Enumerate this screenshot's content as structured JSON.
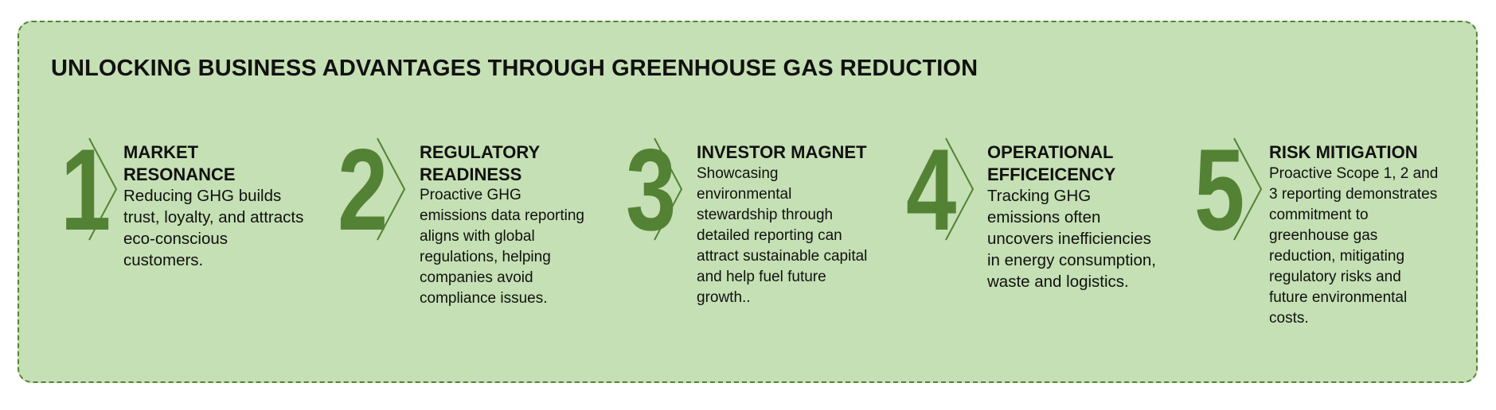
{
  "title": "UNLOCKING BUSINESS ADVANTAGES THROUGH GREENHOUSE GAS REDUCTION",
  "colors": {
    "accent": "#548235",
    "background": "#c5e0b4",
    "text": "#111111"
  },
  "items": [
    {
      "number": "1",
      "heading": "MARKET RESONANCE",
      "body": "Reducing GHG builds trust, loyalty, and attracts eco-conscious customers."
    },
    {
      "number": "2",
      "heading": "REGULATORY READINESS",
      "body": "Proactive GHG emissions data reporting aligns with global regulations, helping companies avoid compliance issues."
    },
    {
      "number": "3",
      "heading": "INVESTOR MAGNET",
      "body": "Showcasing environmental stewardship through detailed reporting can attract sustainable capital and help fuel future growth.."
    },
    {
      "number": "4",
      "heading": "OPERATIONAL EFFICEICENCY",
      "body": "Tracking GHG emissions often uncovers inefficiencies in energy consumption, waste and logistics."
    },
    {
      "number": "5",
      "heading": "RISK MITIGATION",
      "body": "Proactive Scope 1, 2 and 3 reporting demonstrates commitment to greenhouse gas reduction, mitigating regulatory risks and future environmental costs."
    }
  ]
}
